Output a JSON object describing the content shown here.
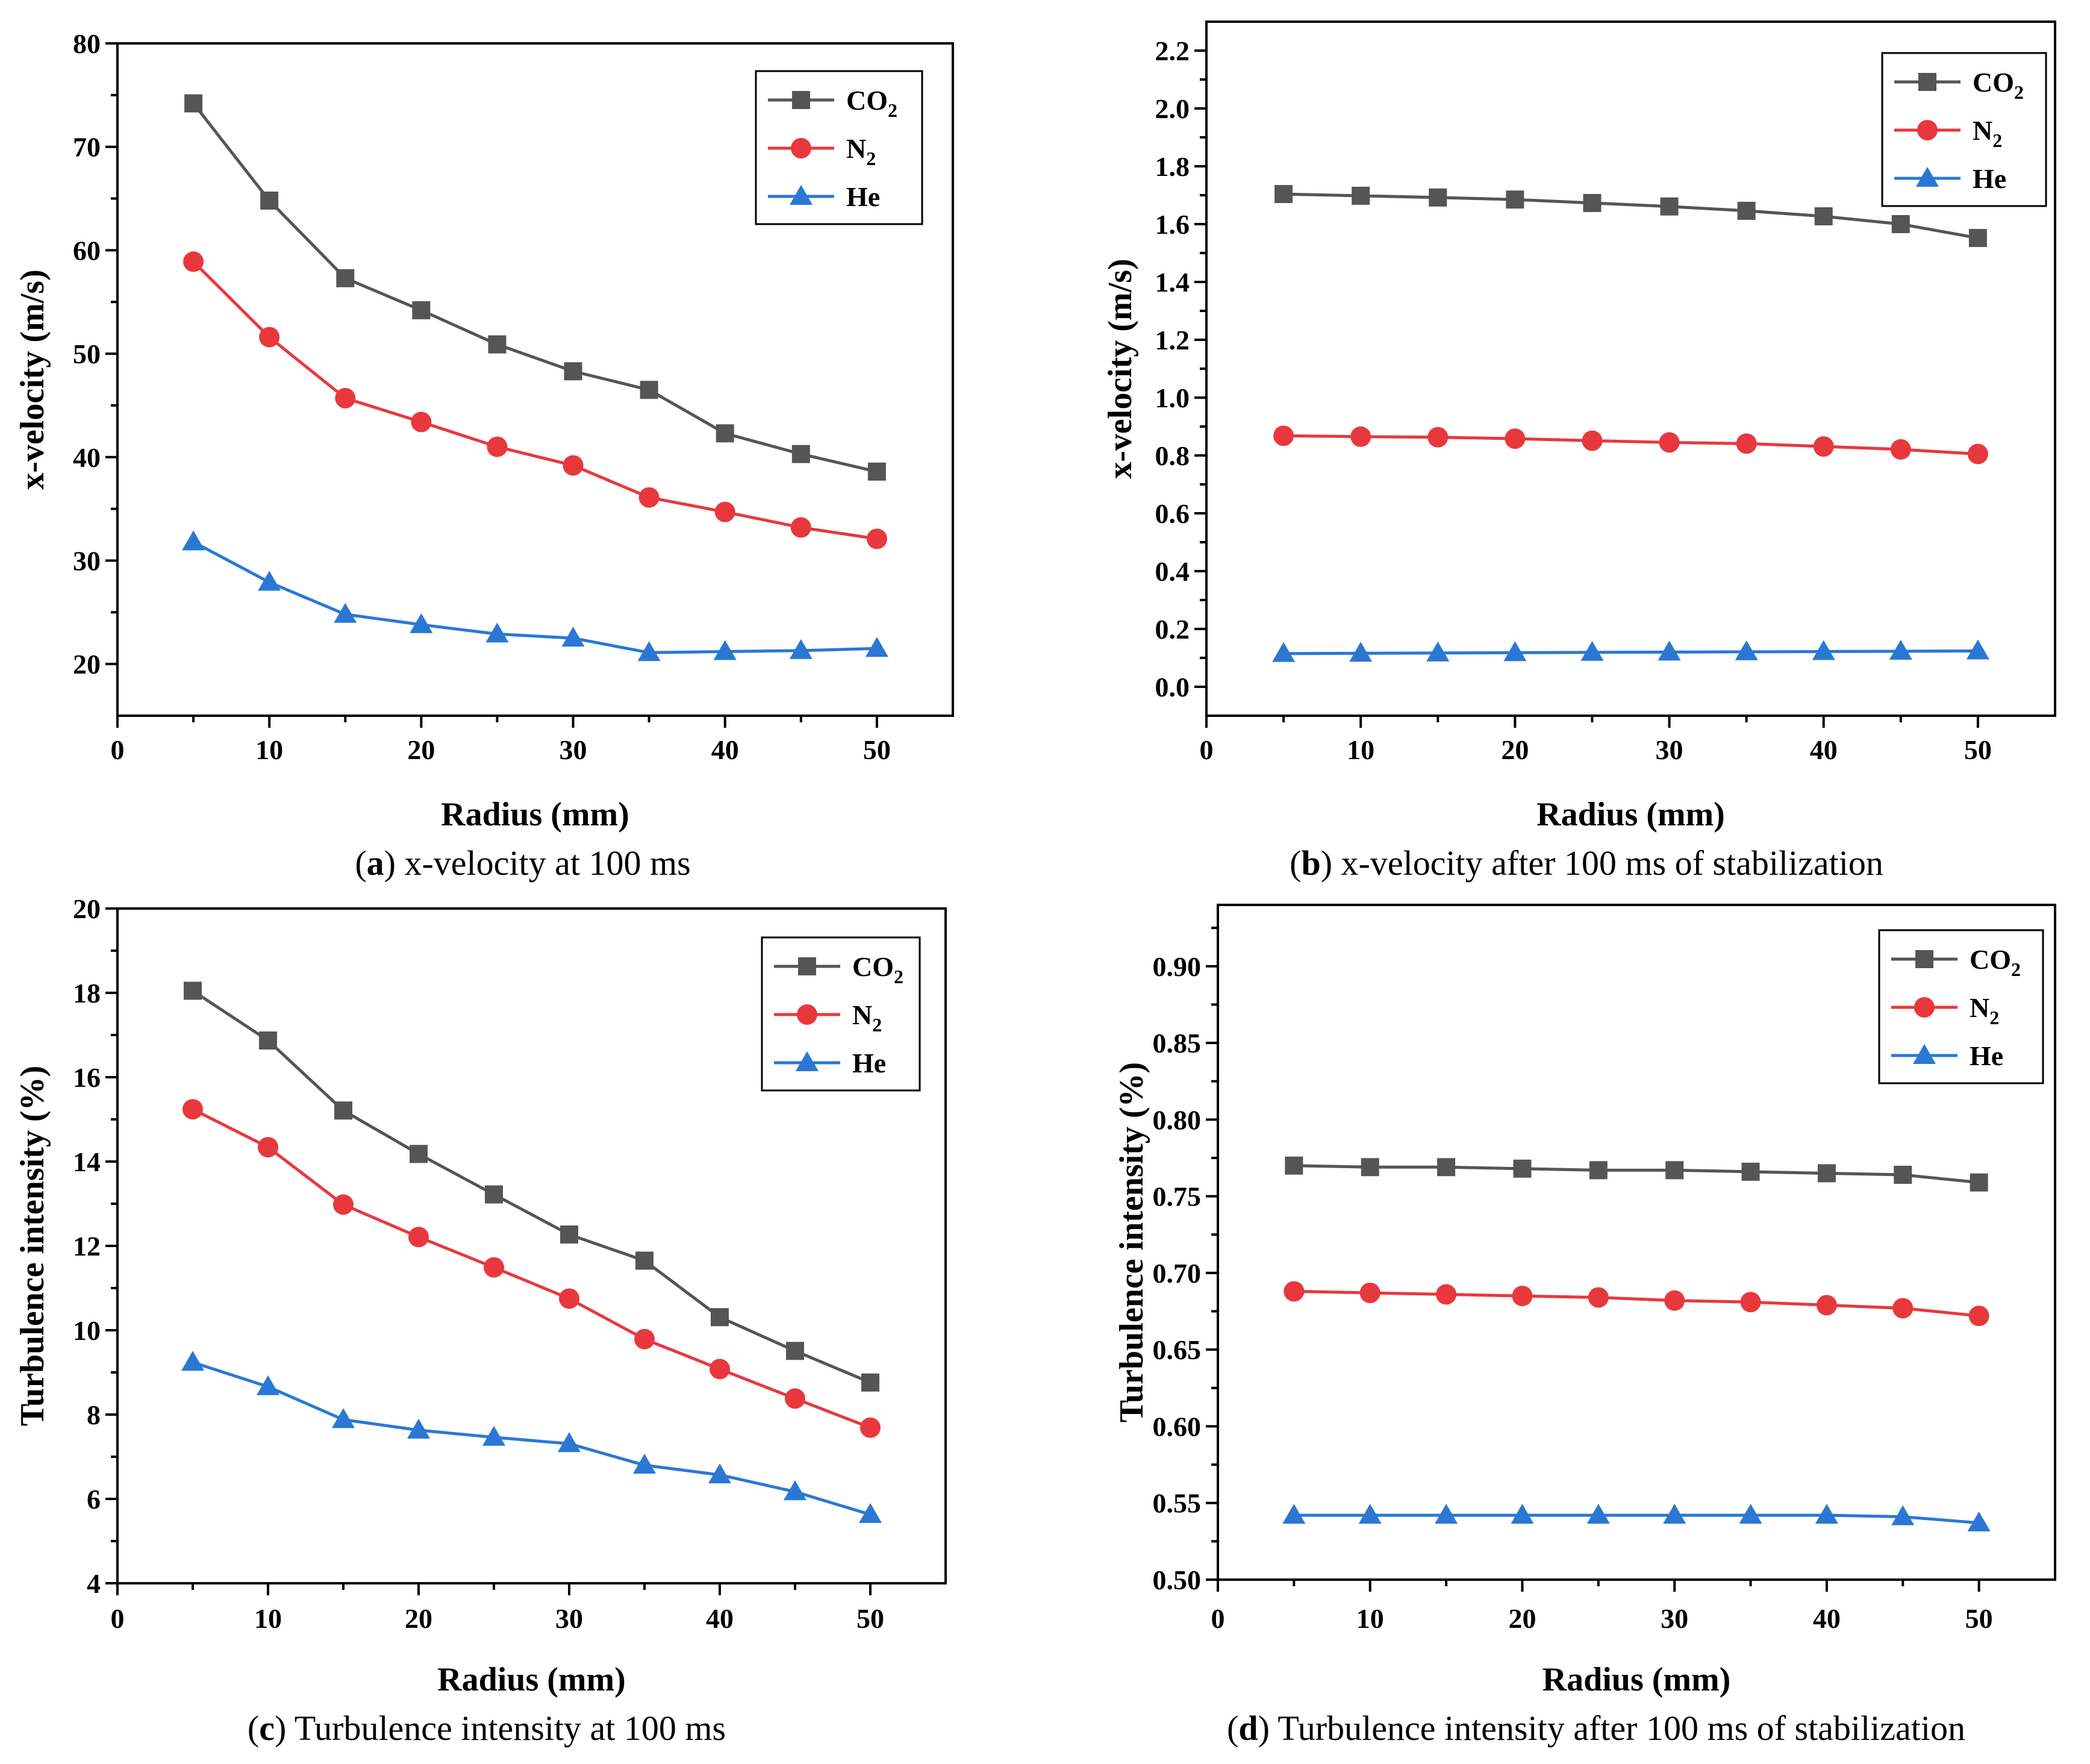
{
  "figure_captions": [
    {
      "letter": "a",
      "text": ") x-velocity at 100 ms"
    },
    {
      "letter": "b",
      "text": ") x-velocity after 100 ms of stabilization"
    },
    {
      "letter": "c",
      "text": ") Turbulence intensity at 100 ms"
    },
    {
      "letter": "d",
      "text": ") Turbulence intensity after 100 ms of stabilization"
    }
  ],
  "colors": {
    "CO2": "#555555",
    "N2": "#e8383d",
    "He": "#2a78d4"
  },
  "chart_data": [
    {
      "type": "line",
      "panel": "a",
      "xlabel": "Radius (mm)",
      "ylabel": "x-velocity (m/s)",
      "xlim": [
        0,
        55
      ],
      "ylim": [
        15,
        80
      ],
      "xticks": [
        0,
        10,
        20,
        30,
        40,
        50
      ],
      "xtick_labels": [
        "0",
        "10",
        "20",
        "30",
        "40",
        "50"
      ],
      "yticks": [
        20,
        30,
        40,
        50,
        60,
        70,
        80
      ],
      "ytick_labels": [
        "20",
        "30",
        "40",
        "50",
        "60",
        "70",
        "80"
      ],
      "x": [
        5,
        10,
        15,
        20,
        25,
        30,
        35,
        40,
        45,
        50
      ],
      "legend_position": "top-right",
      "series": [
        {
          "name": "CO2",
          "label_main": "CO",
          "label_sub": "2",
          "marker": "square",
          "values": [
            74.2,
            64.8,
            57.3,
            54.2,
            50.9,
            48.3,
            46.5,
            42.3,
            40.3,
            38.6
          ]
        },
        {
          "name": "N2",
          "label_main": "N",
          "label_sub": "2",
          "marker": "circle",
          "values": [
            58.9,
            51.6,
            45.7,
            43.4,
            41.0,
            39.2,
            36.1,
            34.7,
            33.2,
            32.1
          ]
        },
        {
          "name": "He",
          "label_main": "He",
          "label_sub": "",
          "marker": "triangle",
          "values": [
            31.8,
            27.9,
            24.8,
            23.8,
            22.9,
            22.5,
            21.1,
            21.2,
            21.3,
            21.5
          ]
        }
      ]
    },
    {
      "type": "line",
      "panel": "b",
      "xlabel": "Radius (mm)",
      "ylabel": "x-velocity (m/s)",
      "xlim": [
        0,
        55
      ],
      "ylim": [
        -0.1,
        2.3
      ],
      "xticks": [
        0,
        10,
        20,
        30,
        40,
        50
      ],
      "xtick_labels": [
        "0",
        "10",
        "20",
        "30",
        "40",
        "50"
      ],
      "yticks": [
        0.0,
        0.2,
        0.4,
        0.6,
        0.8,
        1.0,
        1.2,
        1.4,
        1.6,
        1.8,
        2.0,
        2.2
      ],
      "ytick_labels": [
        "0.0",
        "0.2",
        "0.4",
        "0.6",
        "0.8",
        "1.0",
        "1.2",
        "1.4",
        "1.6",
        "1.8",
        "2.0",
        "2.2"
      ],
      "x": [
        5,
        10,
        15,
        20,
        25,
        30,
        35,
        40,
        45,
        50
      ],
      "legend_position": "top-right",
      "series": [
        {
          "name": "CO2",
          "label_main": "CO",
          "label_sub": "2",
          "marker": "square",
          "values": [
            1.704,
            1.698,
            1.692,
            1.685,
            1.673,
            1.661,
            1.646,
            1.627,
            1.6,
            1.552
          ]
        },
        {
          "name": "N2",
          "label_main": "N",
          "label_sub": "2",
          "marker": "circle",
          "values": [
            0.868,
            0.865,
            0.863,
            0.858,
            0.851,
            0.845,
            0.841,
            0.831,
            0.821,
            0.805
          ]
        },
        {
          "name": "He",
          "label_main": "He",
          "label_sub": "",
          "marker": "triangle",
          "values": [
            0.115,
            0.116,
            0.117,
            0.118,
            0.119,
            0.12,
            0.121,
            0.122,
            0.123,
            0.124
          ]
        }
      ]
    },
    {
      "type": "line",
      "panel": "c",
      "xlabel": "Radius (mm)",
      "ylabel": "Turbulence intensity (%)",
      "xlim": [
        0,
        55
      ],
      "ylim": [
        4,
        20
      ],
      "xticks": [
        0,
        10,
        20,
        30,
        40,
        50
      ],
      "xtick_labels": [
        "0",
        "10",
        "20",
        "30",
        "40",
        "50"
      ],
      "yticks": [
        4,
        6,
        8,
        10,
        12,
        14,
        16,
        18,
        20
      ],
      "ytick_labels": [
        "4",
        "6",
        "8",
        "10",
        "12",
        "14",
        "16",
        "18",
        "20"
      ],
      "x": [
        5,
        10,
        15,
        20,
        25,
        30,
        35,
        40,
        45,
        50
      ],
      "legend_position": "top-right",
      "series": [
        {
          "name": "CO2",
          "label_main": "CO",
          "label_sub": "2",
          "marker": "square",
          "values": [
            18.05,
            16.87,
            15.21,
            14.18,
            13.22,
            12.27,
            11.65,
            10.31,
            9.51,
            8.76
          ]
        },
        {
          "name": "N2",
          "label_main": "N",
          "label_sub": "2",
          "marker": "circle",
          "values": [
            15.24,
            14.34,
            12.98,
            12.21,
            11.49,
            10.75,
            9.79,
            9.08,
            8.38,
            7.69
          ]
        },
        {
          "name": "He",
          "label_main": "He",
          "label_sub": "",
          "marker": "triangle",
          "values": [
            9.24,
            8.66,
            7.88,
            7.63,
            7.46,
            7.31,
            6.8,
            6.57,
            6.17,
            5.63
          ]
        }
      ]
    },
    {
      "type": "line",
      "panel": "d",
      "xlabel": "Radius (mm)",
      "ylabel": "Turbulence intensity (%)",
      "xlim": [
        0,
        55
      ],
      "ylim": [
        0.5,
        0.94
      ],
      "xticks": [
        0,
        10,
        20,
        30,
        40,
        50
      ],
      "xtick_labels": [
        "0",
        "10",
        "20",
        "30",
        "40",
        "50"
      ],
      "yticks": [
        0.5,
        0.55,
        0.6,
        0.65,
        0.7,
        0.75,
        0.8,
        0.85,
        0.9
      ],
      "ytick_labels": [
        "0.50",
        "0.55",
        "0.60",
        "0.65",
        "0.70",
        "0.75",
        "0.80",
        "0.85",
        "0.90"
      ],
      "x": [
        5,
        10,
        15,
        20,
        25,
        30,
        35,
        40,
        45,
        50
      ],
      "legend_position": "top-right",
      "series": [
        {
          "name": "CO2",
          "label_main": "CO",
          "label_sub": "2",
          "marker": "square",
          "values": [
            0.77,
            0.769,
            0.769,
            0.768,
            0.767,
            0.767,
            0.766,
            0.765,
            0.764,
            0.759
          ]
        },
        {
          "name": "N2",
          "label_main": "N",
          "label_sub": "2",
          "marker": "circle",
          "values": [
            0.688,
            0.687,
            0.686,
            0.685,
            0.684,
            0.682,
            0.681,
            0.679,
            0.677,
            0.672
          ]
        },
        {
          "name": "He",
          "label_main": "He",
          "label_sub": "",
          "marker": "triangle",
          "values": [
            0.542,
            0.542,
            0.542,
            0.542,
            0.542,
            0.542,
            0.542,
            0.542,
            0.541,
            0.537
          ]
        }
      ]
    }
  ]
}
